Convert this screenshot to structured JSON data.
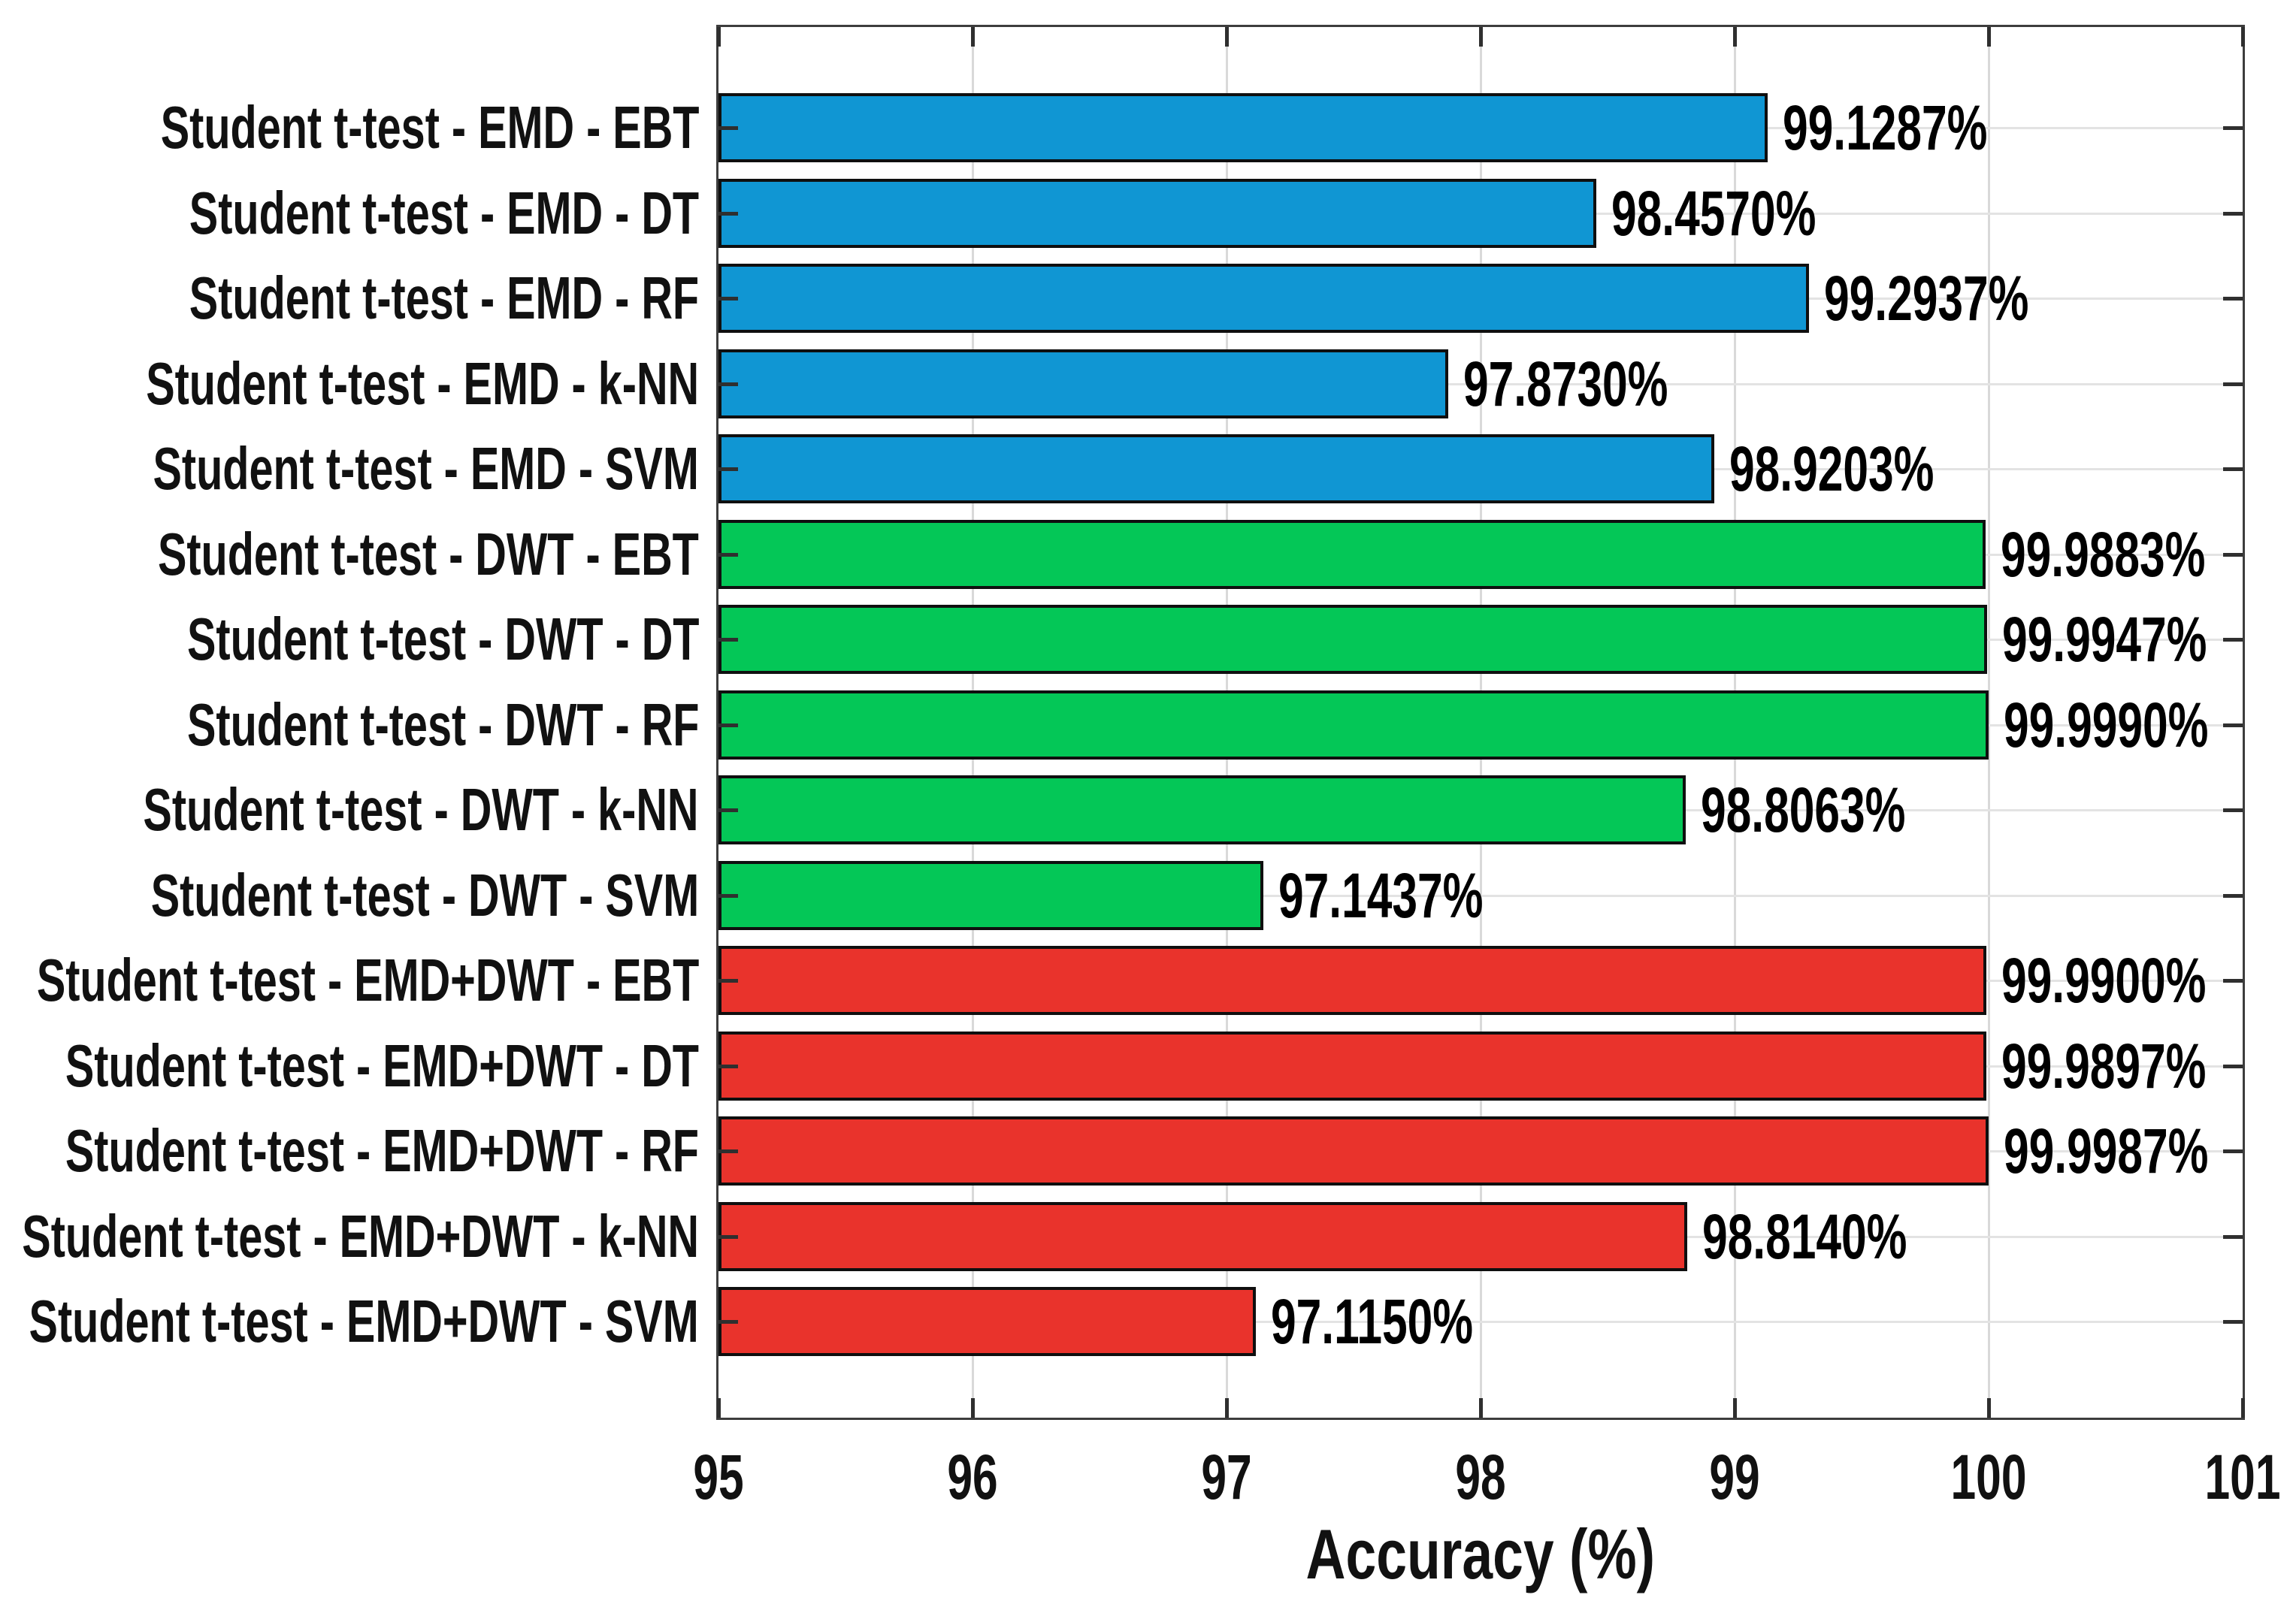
{
  "chart_data": {
    "type": "bar",
    "orientation": "horizontal",
    "title": "",
    "xlabel": "Accuracy (%)",
    "ylabel": "",
    "xlim": [
      95,
      101
    ],
    "xticks": [
      "95",
      "96",
      "97",
      "98",
      "99",
      "100",
      "101"
    ],
    "grid": true,
    "legend": null,
    "categories": [
      "Student t-test - EMD - EBT",
      "Student t-test - EMD - DT",
      "Student t-test - EMD - RF",
      "Student t-test - EMD - k-NN",
      "Student t-test - EMD - SVM",
      "Student t-test - DWT - EBT",
      "Student t-test - DWT - DT",
      "Student t-test - DWT - RF",
      "Student t-test - DWT - k-NN",
      "Student t-test - DWT - SVM",
      "Student t-test - EMD+DWT - EBT",
      "Student t-test - EMD+DWT - DT",
      "Student t-test - EMD+DWT - RF",
      "Student t-test - EMD+DWT - k-NN",
      "Student t-test - EMD+DWT - SVM"
    ],
    "values": [
      99.1287,
      98.457,
      99.2937,
      97.873,
      98.9203,
      99.9883,
      99.9947,
      99.999,
      98.8063,
      97.1437,
      99.99,
      99.9897,
      99.9987,
      98.814,
      97.115
    ],
    "value_labels": [
      "99.1287%",
      "98.4570%",
      "99.2937%",
      "97.8730%",
      "98.9203%",
      "99.9883%",
      "99.9947%",
      "99.9990%",
      "98.8063%",
      "97.1437%",
      "99.9900%",
      "99.9897%",
      "99.9987%",
      "98.8140%",
      "97.1150%"
    ],
    "series_groups": [
      "EMD",
      "EMD",
      "EMD",
      "EMD",
      "EMD",
      "DWT",
      "DWT",
      "DWT",
      "DWT",
      "DWT",
      "EMD+DWT",
      "EMD+DWT",
      "EMD+DWT",
      "EMD+DWT",
      "EMD+DWT"
    ],
    "group_colors": {
      "EMD": "#1096d3",
      "DWT": "#04c757",
      "EMD+DWT": "#e9332c"
    },
    "bar_edge_color": "#0f0f0f",
    "gridline_color": "#dcdcdc",
    "axis_box_color": "#3d3d3d"
  }
}
